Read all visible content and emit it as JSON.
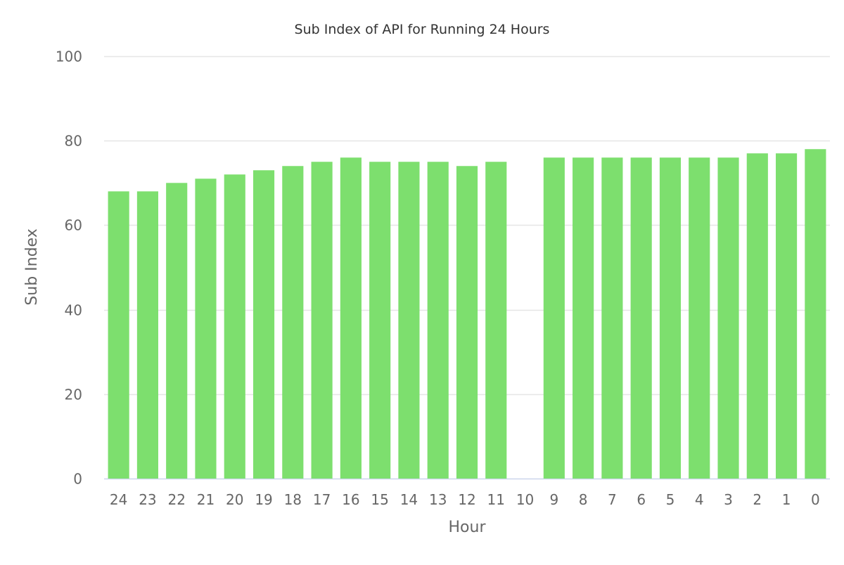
{
  "chart_data": {
    "type": "bar",
    "title": "Sub Index of API for Running 24 Hours",
    "xlabel": "Hour",
    "ylabel": "Sub Index",
    "categories": [
      "24",
      "23",
      "22",
      "21",
      "20",
      "19",
      "18",
      "17",
      "16",
      "15",
      "14",
      "13",
      "12",
      "11",
      "10",
      "9",
      "8",
      "7",
      "6",
      "5",
      "4",
      "3",
      "2",
      "1",
      "0"
    ],
    "values": [
      68,
      68,
      70,
      71,
      72,
      73,
      74,
      75,
      76,
      75,
      75,
      75,
      74,
      75,
      null,
      76,
      76,
      76,
      76,
      76,
      76,
      76,
      77,
      77,
      78
    ],
    "ylim": [
      0,
      100
    ],
    "yticks": [
      0,
      20,
      40,
      60,
      80,
      100
    ],
    "grid": true,
    "legend": "none",
    "colors": {
      "bar": "#7ddf6e",
      "grid": "#e6e6e6",
      "axis_line": "#ccd6eb",
      "tick_text": "#666666",
      "title_text": "#333333",
      "label_text": "#666666"
    }
  }
}
